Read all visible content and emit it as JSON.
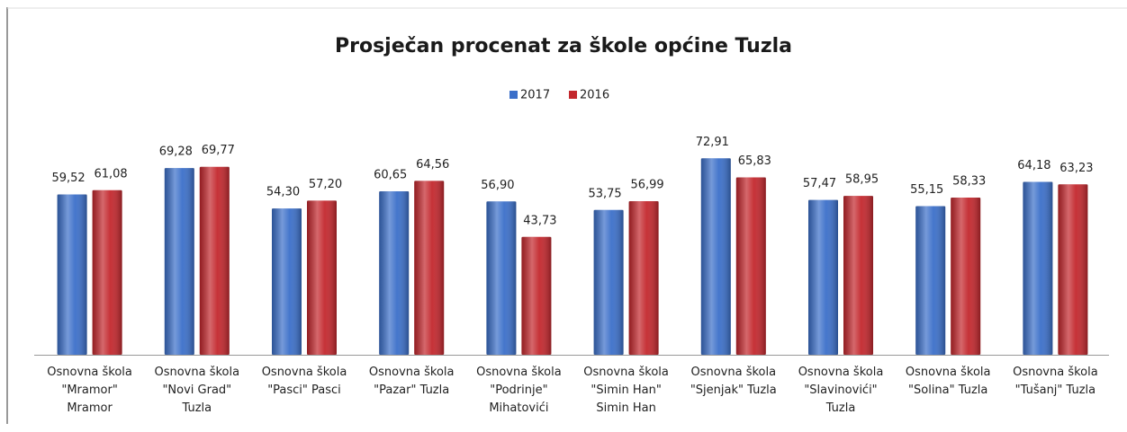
{
  "chart_data": {
    "type": "bar",
    "title": "Prosječan procenat za škole općine Tuzla",
    "categories": [
      "Osnovna škola\n\"Mramor\"\nMramor",
      "Osnovna škola\n\"Novi Grad\"\nTuzla",
      "Osnovna škola\n\"Pasci\" Pasci",
      "Osnovna škola\n\"Pazar\" Tuzla",
      "Osnovna škola\n\"Podrinje\"\nMihatovići",
      "Osnovna škola\n\"Simin Han\"\nSimin Han",
      "Osnovna škola\n\"Sjenjak\" Tuzla",
      "Osnovna škola\n\"Slavinovići\"\nTuzla",
      "Osnovna škola\n\"Solina\" Tuzla",
      "Osnovna škola\n\"Tušanj\" Tuzla"
    ],
    "series": [
      {
        "name": "2017",
        "color": "#3b6fc9",
        "values": [
          59.52,
          69.28,
          54.3,
          60.65,
          56.9,
          53.75,
          72.91,
          57.47,
          55.15,
          64.18
        ],
        "value_labels": [
          "59,52",
          "69,28",
          "54,30",
          "60,65",
          "56,90",
          "53,75",
          "72,91",
          "57,47",
          "55,15",
          "64,18"
        ]
      },
      {
        "name": "2016",
        "color": "#c3272d",
        "values": [
          61.08,
          69.77,
          57.2,
          64.56,
          43.73,
          56.99,
          65.83,
          58.95,
          58.33,
          63.23
        ],
        "value_labels": [
          "61,08",
          "69,77",
          "57,20",
          "64,56",
          "43,73",
          "56,99",
          "65,83",
          "58,95",
          "58,33",
          "63,23"
        ]
      }
    ],
    "ylim": [
      0,
      80
    ],
    "legend": "top"
  }
}
